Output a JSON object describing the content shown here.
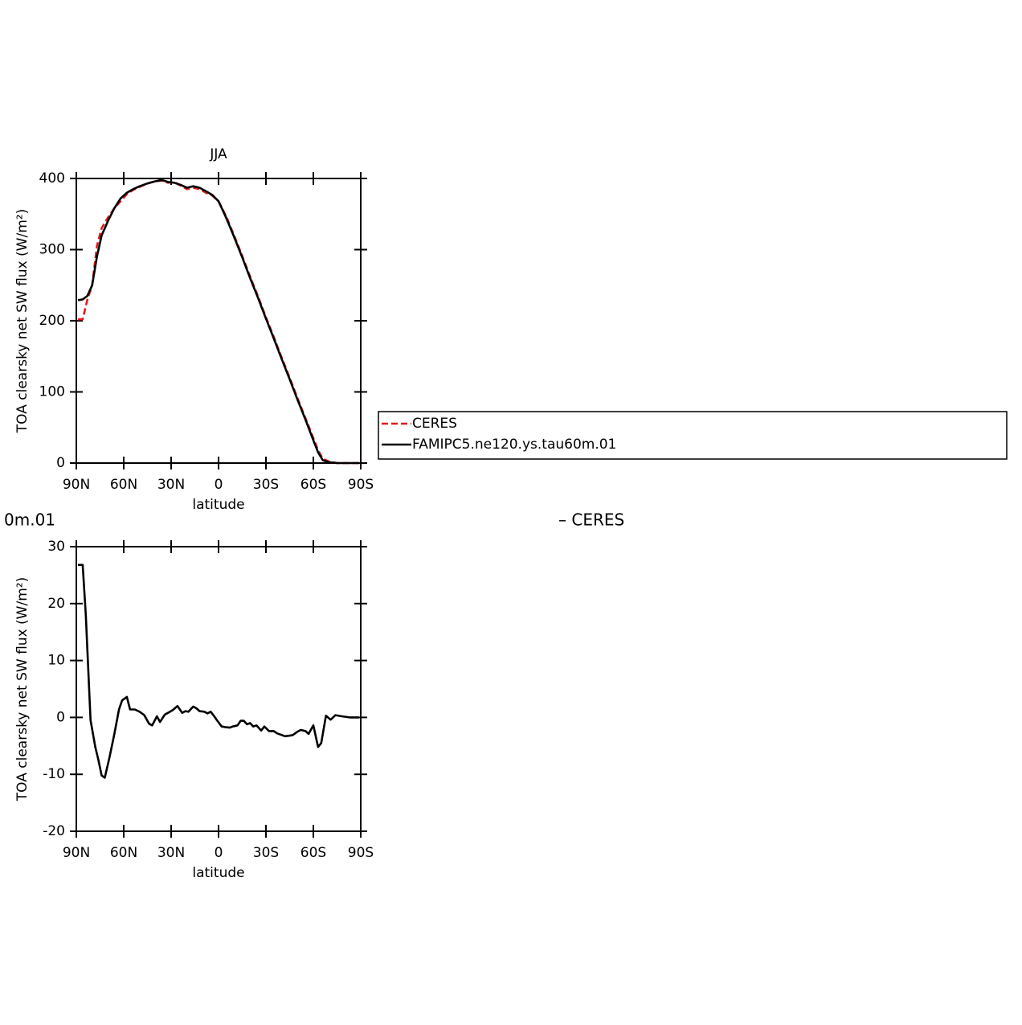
{
  "chart_data": [
    {
      "type": "line",
      "title": "JJA",
      "xlabel": "latitude",
      "ylabel": "TOA clearsky net SW flux (W/m²)",
      "xlim": [
        90,
        -90
      ],
      "xticks": [
        {
          "value": 90,
          "label": "90N"
        },
        {
          "value": 60,
          "label": "60N"
        },
        {
          "value": 30,
          "label": "30N"
        },
        0,
        {
          "value": -30,
          "label": "30S"
        },
        {
          "value": -60,
          "label": "60S"
        },
        {
          "value": -90,
          "label": "90S"
        }
      ],
      "ylim": [
        0,
        400
      ],
      "yticks": [
        0,
        100,
        200,
        300,
        400
      ],
      "x": [
        89,
        86,
        83,
        80,
        77,
        74,
        70,
        66,
        62,
        58,
        54,
        50,
        45,
        40,
        36,
        32,
        28,
        24,
        20,
        16,
        12,
        8,
        4,
        0,
        -5,
        -10,
        -15,
        -20,
        -25,
        -30,
        -35,
        -40,
        -45,
        -50,
        -55,
        -60,
        -63,
        -66,
        -70,
        -75,
        -80,
        -85,
        -89
      ],
      "series": [
        {
          "name": "CERES",
          "color": "#e41a1c",
          "dash": "dashed",
          "values": [
            202,
            202,
            230,
            250,
            305,
            330,
            345,
            358,
            368,
            378,
            384,
            388,
            393,
            396,
            397,
            394,
            395,
            390,
            385,
            387,
            385,
            380,
            376,
            368,
            346,
            319,
            291,
            262,
            234,
            205,
            177,
            148,
            120,
            91,
            63,
            35,
            18,
            6,
            2,
            0,
            0,
            0,
            0
          ]
        },
        {
          "name": "FAMIPC5.ne120.ys.tau60m.01",
          "color": "#000000",
          "dash": "solid",
          "values": [
            229,
            230,
            235,
            250,
            290,
            320,
            340,
            358,
            372,
            380,
            385,
            389,
            393,
            396,
            398,
            395,
            394,
            391,
            387,
            389,
            387,
            382,
            377,
            368,
            344,
            317,
            289,
            260,
            232,
            203,
            175,
            146,
            118,
            89,
            61,
            32,
            15,
            4,
            1,
            0,
            0,
            0,
            0
          ]
        }
      ]
    },
    {
      "type": "line",
      "title_left": "0m.01",
      "title_right": "– CERES",
      "xlabel": "latitude",
      "ylabel": "TOA clearsky net SW flux (W/m²)",
      "xlim": [
        90,
        -90
      ],
      "xticks": [
        {
          "value": 90,
          "label": "90N"
        },
        {
          "value": 60,
          "label": "60N"
        },
        {
          "value": 30,
          "label": "30N"
        },
        0,
        {
          "value": -30,
          "label": "30S"
        },
        {
          "value": -60,
          "label": "60S"
        },
        {
          "value": -90,
          "label": "90S"
        }
      ],
      "ylim": [
        -20,
        30
      ],
      "yticks": [
        -20,
        -10,
        0,
        10,
        20,
        30
      ],
      "x": [
        89,
        86,
        84,
        81,
        78,
        76,
        74,
        72,
        69,
        66,
        63,
        61,
        58,
        56,
        53,
        50,
        47,
        44,
        42,
        39,
        37,
        34,
        32,
        29,
        26,
        23,
        21,
        19,
        16,
        14,
        12,
        9,
        7,
        5,
        3,
        1,
        -2,
        -4,
        -7,
        -9,
        -12,
        -14,
        -16,
        -18,
        -20,
        -22,
        -24,
        -27,
        -29,
        -32,
        -35,
        -37,
        -40,
        -42,
        -45,
        -47,
        -50,
        -52,
        -55,
        -57,
        -60,
        -63,
        -65,
        -68,
        -71,
        -74,
        -78,
        -83,
        -89
      ],
      "series": [
        {
          "color": "#000000",
          "dash": "solid",
          "values": [
            26.8,
            26.8,
            18,
            -0.5,
            -5.2,
            -7.5,
            -10.2,
            -10.6,
            -7,
            -3,
            1.4,
            3,
            3.6,
            1.4,
            1.4,
            1,
            0.4,
            -1.1,
            -1.4,
            0.2,
            -0.8,
            0.5,
            0.8,
            1.3,
            2,
            0.8,
            1.1,
            1,
            1.9,
            1.6,
            1.1,
            1,
            0.7,
            1,
            0.3,
            -0.5,
            -1.6,
            -1.7,
            -1.8,
            -1.6,
            -1.4,
            -0.6,
            -0.6,
            -1.2,
            -1,
            -1.6,
            -1.4,
            -2.3,
            -1.6,
            -2.4,
            -2.4,
            -2.8,
            -3.1,
            -3.3,
            -3.2,
            -3.1,
            -2.5,
            -2.2,
            -2.4,
            -2.9,
            -1.4,
            -5.2,
            -4.5,
            0.3,
            -0.4,
            0.4,
            0.2,
            0,
            0
          ]
        }
      ]
    }
  ]
}
